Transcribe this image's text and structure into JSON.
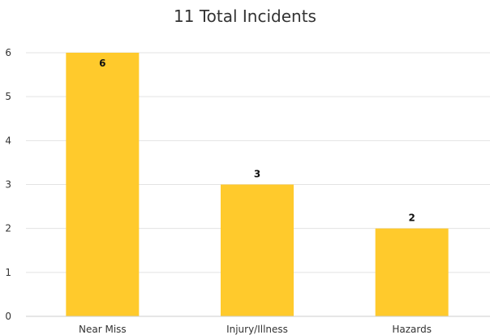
{
  "chart_data": {
    "type": "bar",
    "title": "11 Total Incidents",
    "categories": [
      "Near Miss",
      "Injury/Illness",
      "Hazards"
    ],
    "values": [
      6,
      3,
      2
    ],
    "data_labels": [
      "6",
      "3",
      "2"
    ],
    "y_ticks": [
      "0",
      "1",
      "2",
      "3",
      "4",
      "5",
      "6"
    ],
    "ylim": [
      0,
      6
    ],
    "grid": true,
    "legend": "none",
    "xlabel": "",
    "ylabel": "",
    "bar_color": "#FFCA2C",
    "grid_color": "#E3E3E3",
    "axis_color": "#CCCCCC",
    "text_color": "#333333"
  }
}
